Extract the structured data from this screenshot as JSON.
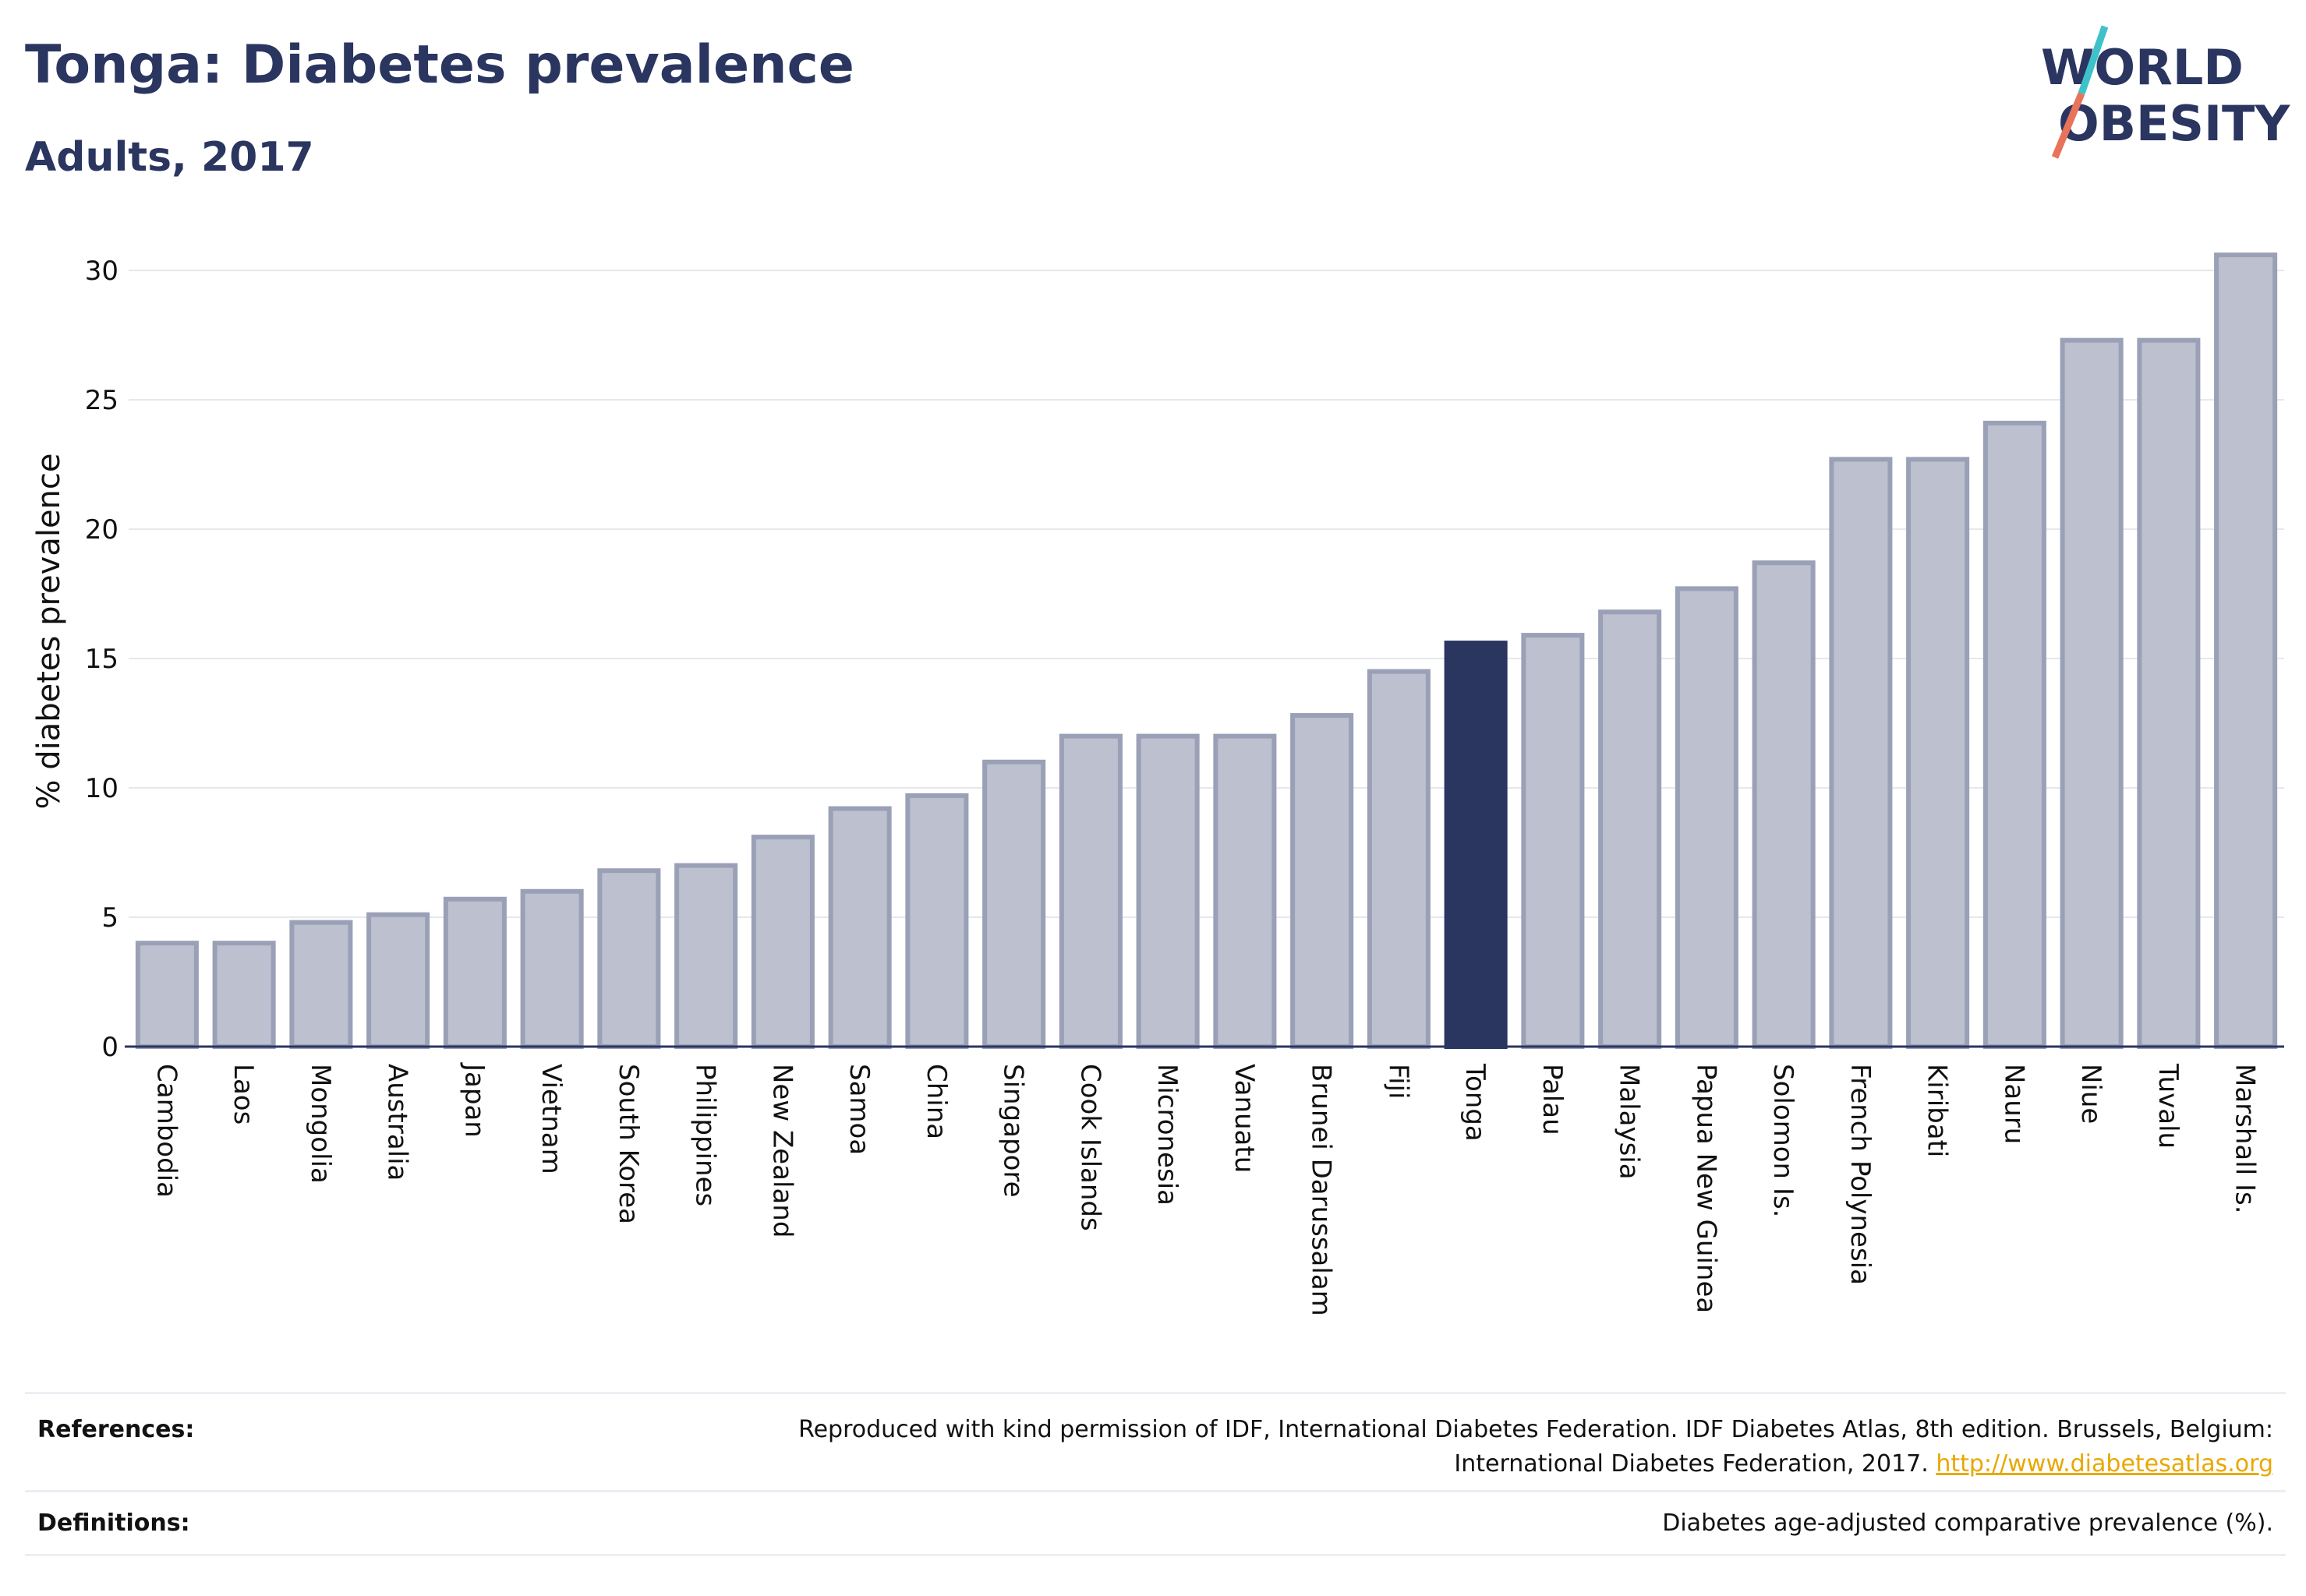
{
  "header": {
    "title": "Tonga: Diabetes prevalence",
    "subtitle": "Adults, 2017",
    "logo_line1": "WORLD",
    "logo_line2": "OBESITY"
  },
  "colors": {
    "bar": "#bcc0cf",
    "bar_border": "#9aa0b6",
    "highlight": "#2a3560",
    "grid": "#e6e8ee",
    "logo_teal": "#3ec1c9",
    "logo_coral": "#e8735a"
  },
  "chart_data": {
    "type": "bar",
    "title": "Tonga: Diabetes prevalence",
    "subtitle": "Adults, 2017",
    "xlabel": "",
    "ylabel": "% diabetes prevalence",
    "ylim": [
      0,
      31
    ],
    "yticks": [
      0,
      5,
      10,
      15,
      20,
      25,
      30
    ],
    "grid": true,
    "highlight": "Tonga",
    "categories": [
      "Cambodia",
      "Laos",
      "Mongolia",
      "Australia",
      "Japan",
      "Vietnam",
      "South Korea",
      "Philippines",
      "New Zealand",
      "Samoa",
      "China",
      "Singapore",
      "Cook Islands",
      "Micronesia",
      "Vanuatu",
      "Brunei Darussalam",
      "Fiji",
      "Tonga",
      "Palau",
      "Malaysia",
      "Papua New Guinea",
      "Solomon Is.",
      "French Polynesia",
      "Kiribati",
      "Nauru",
      "Niue",
      "Tuvalu",
      "Marshall Is."
    ],
    "values": [
      4.0,
      4.0,
      4.8,
      5.1,
      5.7,
      6.0,
      6.8,
      7.0,
      8.1,
      9.2,
      9.7,
      11.0,
      12.0,
      12.0,
      12.0,
      12.8,
      14.5,
      15.6,
      15.9,
      16.8,
      17.7,
      18.7,
      22.7,
      22.7,
      24.1,
      27.3,
      27.3,
      30.6
    ]
  },
  "footer": {
    "references_label": "References:",
    "references_text_line1": "Reproduced with kind permission of IDF, International Diabetes Federation. IDF Diabetes Atlas, 8th edition. Brussels, Belgium:",
    "references_text_line2": "International Diabetes Federation, 2017.",
    "references_link": "http://www.diabetesatlas.org",
    "definitions_label": "Definitions:",
    "definitions_text": "Diabetes age-adjusted comparative prevalence (%)."
  }
}
